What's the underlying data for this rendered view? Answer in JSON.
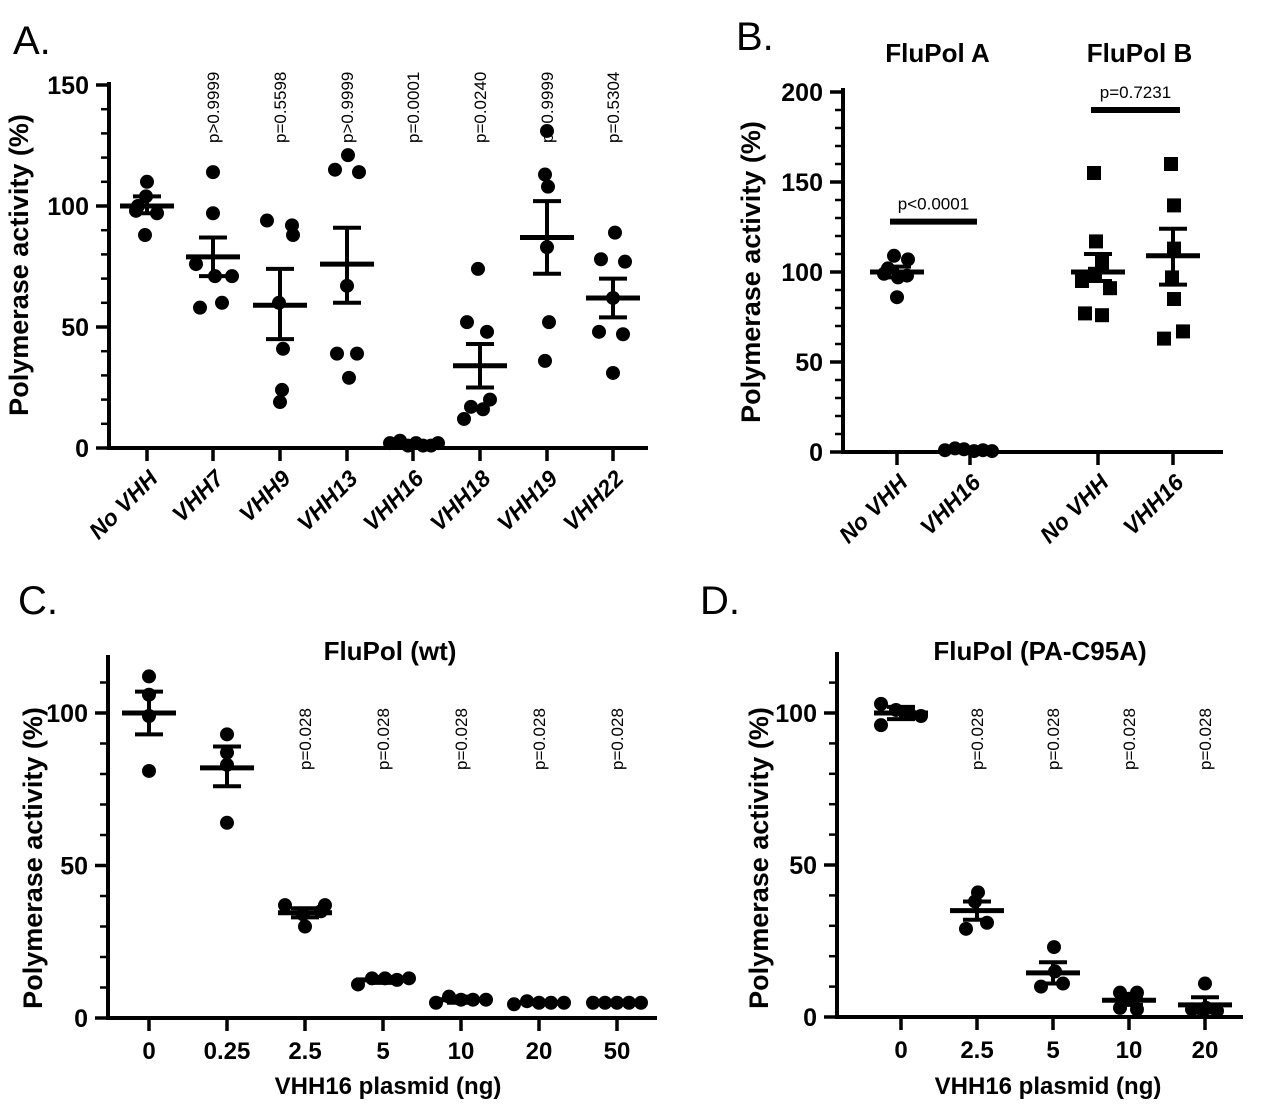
{
  "figure": {
    "background": "#ffffff",
    "ink": "#000000"
  },
  "chart_data": {
    "type": "scatter",
    "panels": [
      {
        "letter": "A.",
        "ylabel": "Polymerase activity (%)",
        "ylim": [
          0,
          150
        ],
        "yticks": [
          0,
          50,
          100,
          150
        ],
        "minor_tick_step": 10,
        "marker": "circle",
        "groups": [
          {
            "label": "No VHH",
            "p": null,
            "mean": 100,
            "err_low": 97,
            "err_high": 104,
            "points": [
              [
                110,
                0
              ],
              [
                104,
                -1
              ],
              [
                100,
                -9
              ],
              [
                98,
                -11
              ],
              [
                97,
                10
              ],
              [
                88,
                -2
              ]
            ]
          },
          {
            "label": "VHH7",
            "p": "p>0.9999",
            "mean": 79,
            "err_low": 71,
            "err_high": 87,
            "points": [
              [
                114,
                0
              ],
              [
                97,
                0
              ],
              [
                76,
                -17
              ],
              [
                71,
                2
              ],
              [
                71,
                19
              ],
              [
                58,
                -13
              ],
              [
                60,
                9
              ]
            ]
          },
          {
            "label": "VHH9",
            "p": "p=0.5598",
            "mean": 59,
            "err_low": 45,
            "err_high": 74,
            "points": [
              [
                94,
                -13
              ],
              [
                92,
                12
              ],
              [
                88,
                13
              ],
              [
                60,
                -1
              ],
              [
                41,
                3
              ],
              [
                24,
                2
              ],
              [
                19,
                0
              ]
            ]
          },
          {
            "label": "VHH13",
            "p": "p>0.9999",
            "mean": 76,
            "err_low": 60,
            "err_high": 91,
            "points": [
              [
                121,
                1
              ],
              [
                115,
                -12
              ],
              [
                114,
                12
              ],
              [
                67,
                0
              ],
              [
                39,
                -10
              ],
              [
                39,
                10
              ],
              [
                29,
                2
              ]
            ]
          },
          {
            "label": "VHH16",
            "p": "p=0.0001",
            "mean": 1.5,
            "err_low": 1,
            "err_high": 2,
            "points": [
              [
                2,
                -23
              ],
              [
                3,
                -13
              ],
              [
                1,
                -5
              ],
              [
                2,
                3
              ],
              [
                1,
                10
              ],
              [
                1,
                18
              ],
              [
                2,
                25
              ]
            ]
          },
          {
            "label": "VHH18",
            "p": "p=0.0240",
            "mean": 34,
            "err_low": 25,
            "err_high": 43,
            "points": [
              [
                74,
                -2
              ],
              [
                52,
                -13
              ],
              [
                48,
                7
              ],
              [
                20,
                10
              ],
              [
                17,
                -9
              ],
              [
                16,
                3
              ],
              [
                12,
                -16
              ]
            ]
          },
          {
            "label": "VHH19",
            "p": "p>0.9999",
            "mean": 87,
            "err_low": 72,
            "err_high": 102,
            "points": [
              [
                131,
                0
              ],
              [
                113,
                -2
              ],
              [
                108,
                1
              ],
              [
                83,
                0
              ],
              [
                52,
                2
              ],
              [
                36,
                -2
              ]
            ]
          },
          {
            "label": "VHH22",
            "p": "p=0.5304",
            "mean": 62,
            "err_low": 54,
            "err_high": 70,
            "points": [
              [
                89,
                2
              ],
              [
                78,
                -12
              ],
              [
                77,
                12
              ],
              [
                62,
                0
              ],
              [
                48,
                -14
              ],
              [
                47,
                10
              ],
              [
                31,
                0
              ]
            ]
          }
        ]
      },
      {
        "letter": "B.",
        "ylabel": "Polymerase activity (%)",
        "ylim": [
          0,
          200
        ],
        "yticks": [
          0,
          50,
          100,
          150,
          200
        ],
        "minor_tick_step": 10,
        "pair_titles": [
          "FluPol A",
          "FluPol B"
        ],
        "sig_bars": [
          {
            "text": "p<0.0001",
            "from_group": 0,
            "to_group": 1,
            "y_value": 128
          },
          {
            "text": "p=0.7231",
            "from_group": 2,
            "to_group": 3,
            "y_value": 190
          }
        ],
        "groups": [
          {
            "label": "No VHH",
            "marker": "circle",
            "mean": 100,
            "err_low": 97,
            "err_high": 103,
            "points": [
              [
                109,
                -3
              ],
              [
                107,
                11
              ],
              [
                102,
                -9
              ],
              [
                99,
                -13
              ],
              [
                98,
                10
              ],
              [
                97,
                1
              ],
              [
                86,
                0
              ]
            ]
          },
          {
            "label": "VHH16",
            "marker": "circle",
            "mean": 1,
            "err_low": 0.5,
            "err_high": 1.5,
            "points": [
              [
                1,
                -25
              ],
              [
                2,
                -15
              ],
              [
                1.5,
                -6
              ],
              [
                0.5,
                4
              ],
              [
                1,
                13
              ],
              [
                0.5,
                22
              ]
            ]
          },
          {
            "label": "No VHH",
            "marker": "square",
            "mean": 100,
            "err_low": 95,
            "err_high": 110,
            "points": [
              [
                155,
                -4
              ],
              [
                117,
                -2
              ],
              [
                105,
                4
              ],
              [
                99,
                -3
              ],
              [
                95,
                -16
              ],
              [
                91,
                12
              ],
              [
                77,
                -13
              ],
              [
                76,
                4
              ]
            ]
          },
          {
            "label": "VHH16",
            "marker": "square",
            "mean": 109,
            "err_low": 93,
            "err_high": 124,
            "points": [
              [
                160,
                -2
              ],
              [
                137,
                1
              ],
              [
                113,
                1
              ],
              [
                97,
                -1
              ],
              [
                85,
                1
              ],
              [
                67,
                10
              ],
              [
                63,
                -9
              ]
            ]
          }
        ]
      },
      {
        "letter": "C.",
        "title": "FluPol (wt)",
        "ylabel": "Polymerase activity (%)",
        "xlabel": "VHH16 plasmid (ng)",
        "ylim": [
          0,
          119
        ],
        "yticks": [
          0,
          50,
          100
        ],
        "minor_tick_step": 10,
        "marker": "circle",
        "groups": [
          {
            "label": "0",
            "p": null,
            "mean": 100,
            "err_low": 93,
            "err_high": 107,
            "points": [
              [
                112,
                0
              ],
              [
                106,
                0
              ],
              [
                99,
                0
              ],
              [
                81,
                0
              ]
            ]
          },
          {
            "label": "0.25",
            "p": null,
            "mean": 82,
            "err_low": 76,
            "err_high": 89,
            "points": [
              [
                93,
                0
              ],
              [
                87,
                0
              ],
              [
                83,
                0
              ],
              [
                64,
                0
              ]
            ]
          },
          {
            "label": "2.5",
            "p": "p=0.028",
            "mean": 34.5,
            "err_low": 33,
            "err_high": 36,
            "points": [
              [
                37,
                -20
              ],
              [
                37,
                20
              ],
              [
                35,
                16
              ],
              [
                34,
                -2
              ],
              [
                30,
                0
              ]
            ]
          },
          {
            "label": "5",
            "p": "p=0.028",
            "mean": 12.5,
            "err_low": 11.5,
            "err_high": 13.5,
            "points": [
              [
                11,
                -25
              ],
              [
                13,
                -11
              ],
              [
                13,
                2
              ],
              [
                12.5,
                14
              ],
              [
                13,
                26
              ]
            ]
          },
          {
            "label": "10",
            "p": "p=0.028",
            "mean": 6,
            "err_low": 5,
            "err_high": 7,
            "points": [
              [
                5,
                -25
              ],
              [
                7,
                -12
              ],
              [
                6,
                0
              ],
              [
                6,
                12
              ],
              [
                6,
                25
              ]
            ]
          },
          {
            "label": "20",
            "p": "p=0.028",
            "mean": 5,
            "err_low": 4.5,
            "err_high": 5.5,
            "points": [
              [
                4.5,
                -25
              ],
              [
                5.5,
                -12
              ],
              [
                5,
                0
              ],
              [
                5,
                12
              ],
              [
                5,
                25
              ]
            ]
          },
          {
            "label": "50",
            "p": "p=0.028",
            "mean": 5,
            "err_low": 4.5,
            "err_high": 5.5,
            "points": [
              [
                5,
                -24
              ],
              [
                5,
                -12
              ],
              [
                5,
                0
              ],
              [
                5,
                12
              ],
              [
                5,
                24
              ]
            ]
          }
        ]
      },
      {
        "letter": "D.",
        "title": "FluPol (PA-C95A)",
        "ylabel": "Polymerase activity (%)",
        "xlabel": "VHH16 plasmid (ng)",
        "ylim": [
          0,
          119
        ],
        "yticks": [
          0,
          50,
          100
        ],
        "minor_tick_step": 10,
        "marker": "circle",
        "groups": [
          {
            "label": "0",
            "p": null,
            "mean": 100,
            "err_low": 98,
            "err_high": 102,
            "points": [
              [
                103,
                -20
              ],
              [
                96,
                -20
              ],
              [
                101,
                -5
              ],
              [
                100,
                8
              ],
              [
                99,
                20
              ]
            ]
          },
          {
            "label": "2.5",
            "p": "p=0.028",
            "mean": 35,
            "err_low": 32,
            "err_high": 38,
            "points": [
              [
                41,
                1
              ],
              [
                38,
                -2
              ],
              [
                31,
                10
              ],
              [
                29,
                -11
              ]
            ]
          },
          {
            "label": "5",
            "p": "p=0.028",
            "mean": 14.5,
            "err_low": 11,
            "err_high": 18,
            "points": [
              [
                23,
                1
              ],
              [
                15,
                2
              ],
              [
                11,
                10
              ],
              [
                10,
                -12
              ]
            ]
          },
          {
            "label": "10",
            "p": "p=0.028",
            "mean": 5.5,
            "err_low": 4,
            "err_high": 7,
            "points": [
              [
                8,
                -9
              ],
              [
                8,
                8
              ],
              [
                6,
                0
              ],
              [
                3,
                -9
              ],
              [
                2.5,
                8
              ]
            ]
          },
          {
            "label": "20",
            "p": "p=0.028",
            "mean": 4,
            "err_low": 1.5,
            "err_high": 6.5,
            "points": [
              [
                11,
                0
              ],
              [
                3,
                1
              ],
              [
                2.5,
                -13
              ],
              [
                2,
                12
              ],
              [
                2,
                -2
              ]
            ]
          }
        ]
      }
    ]
  }
}
